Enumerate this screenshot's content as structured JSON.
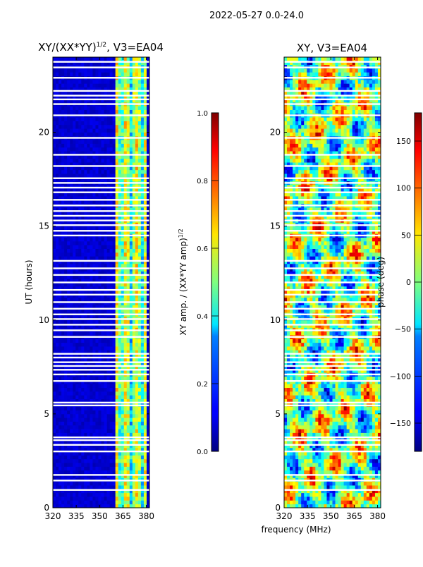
{
  "figure": {
    "suptitle": "2022-05-27 0.0-24.0",
    "shared_xlabel": "frequency (MHz)"
  },
  "chart_data": [
    {
      "type": "heatmap",
      "title": "XY/(XX*YY)¹ᐟ², V3=EA04",
      "title_main": "XY/(XX*YY)",
      "title_exp": "1/2",
      "title_suffix": ", V3=EA04",
      "xlabel": "",
      "ylabel": "UT (hours)",
      "xlim": [
        320,
        382
      ],
      "ylim": [
        0,
        24
      ],
      "xticks": [
        320,
        335,
        350,
        365,
        380
      ],
      "yticks": [
        0,
        5,
        10,
        15,
        20
      ],
      "colorbar": {
        "label": "XY amp. / (XX*YY amp)",
        "label_exp": "1/2",
        "range": [
          0.0,
          1.0
        ],
        "ticks": [
          "0.0",
          "0.2",
          "0.4",
          "0.6",
          "0.8",
          "1.0"
        ],
        "colormap": "jet"
      },
      "description_values": {
        "background_level": 0.05,
        "bright_band_mhz": [
          360,
          380
        ],
        "bright_band_level": 0.45
      }
    },
    {
      "type": "heatmap",
      "title": "XY, V3=EA04",
      "xlabel": "frequency (MHz)",
      "ylabel": "",
      "xlim": [
        320,
        382
      ],
      "ylim": [
        0,
        24
      ],
      "xticks": [
        320,
        335,
        350,
        365,
        380
      ],
      "yticks": [
        0,
        5,
        10,
        15,
        20
      ],
      "colorbar": {
        "label": "phase (deg)",
        "range": [
          -180,
          180
        ],
        "ticks": [
          "150",
          "100",
          "50",
          "0",
          "−50",
          "−100",
          "−150"
        ],
        "tick_values": [
          150,
          100,
          50,
          0,
          -50,
          -100,
          -150
        ],
        "colormap": "jet"
      }
    }
  ],
  "gaps_ut": [
    0.95,
    1.45,
    1.75,
    3.0,
    3.35,
    3.6,
    3.75,
    5.45,
    5.6,
    6.75,
    7.1,
    7.35,
    7.55,
    7.75,
    8.0,
    8.2,
    9.1,
    9.45,
    9.75,
    10.05,
    10.3,
    10.6,
    10.95,
    11.35,
    11.6,
    12.0,
    12.4,
    12.75,
    13.15,
    14.5,
    14.75,
    15.05,
    15.3,
    15.55,
    15.8,
    16.1,
    16.4,
    16.8,
    17.05,
    17.3,
    17.55,
    18.2,
    18.8,
    19.7,
    20.9,
    21.5,
    21.75,
    21.95,
    22.2,
    22.9,
    23.45,
    23.75
  ]
}
